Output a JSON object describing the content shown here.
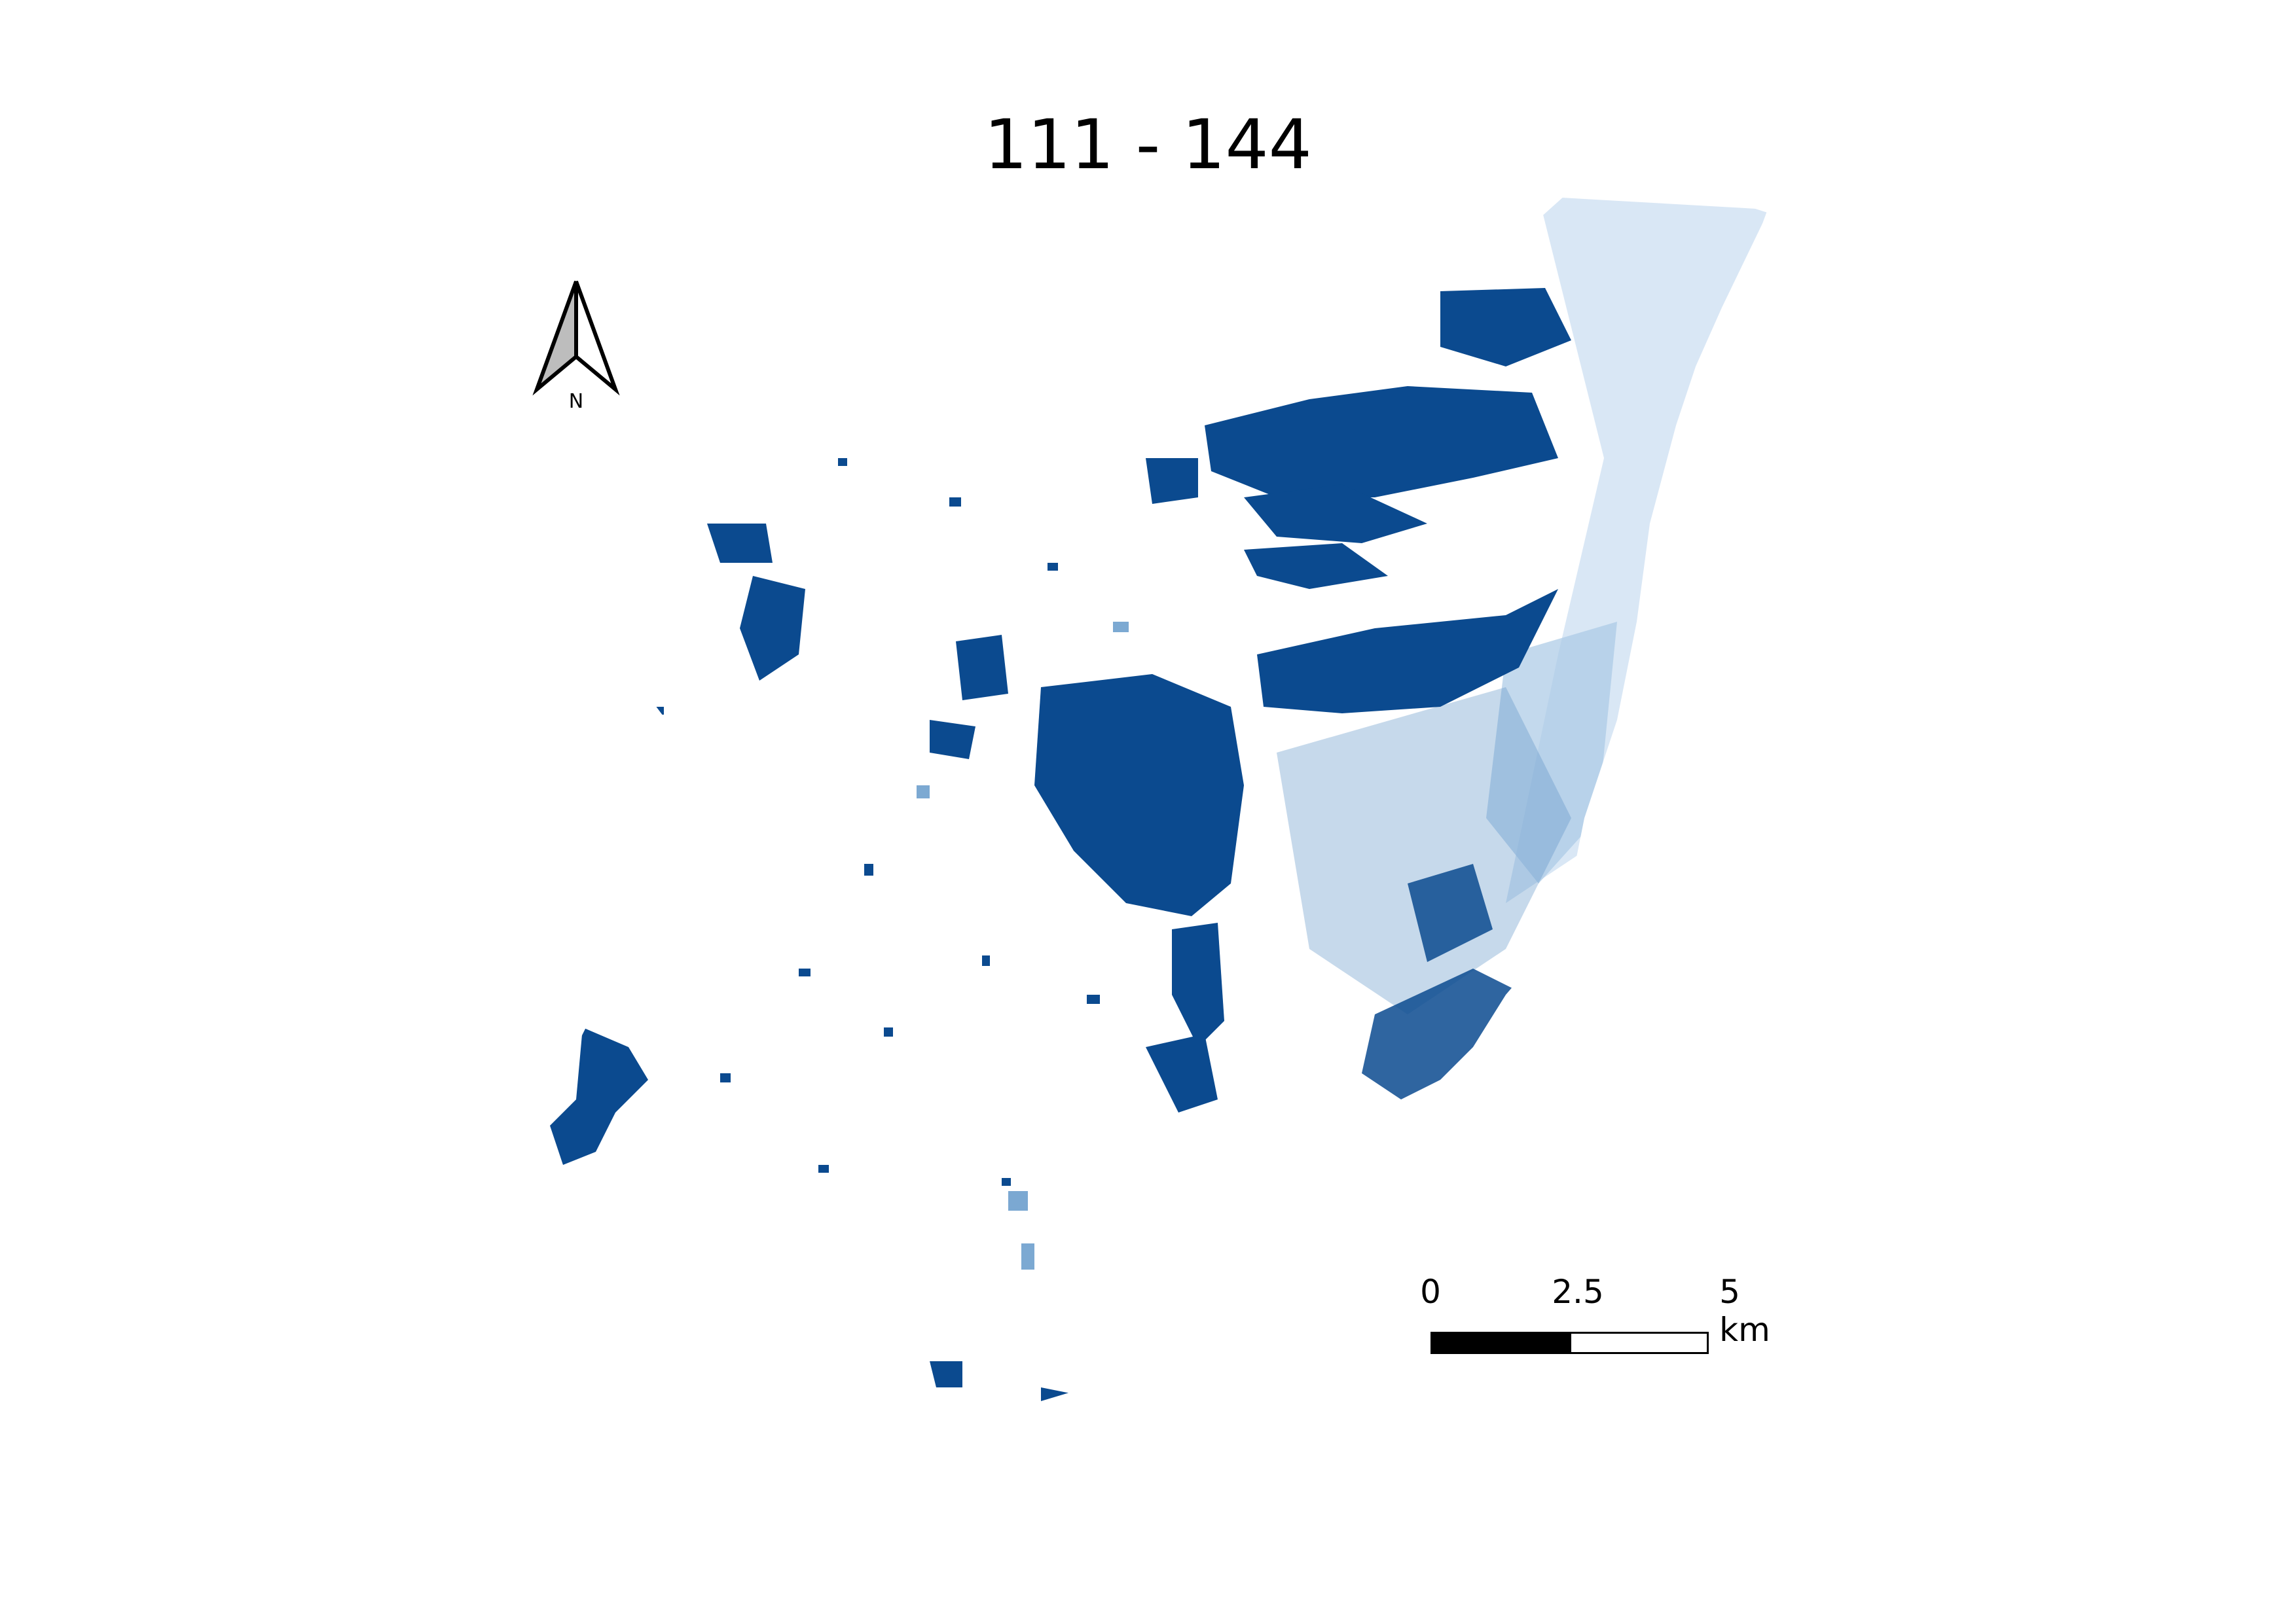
{
  "map": {
    "title": "111 - 144",
    "north_label": "N",
    "colors": {
      "dark": "#0b4a8f",
      "medium": "#5b93c7",
      "light": "#cfe1f2",
      "background": "#ffffff"
    }
  },
  "scale": {
    "label_start": "0",
    "label_mid": "2.5",
    "label_end": "5 km"
  }
}
